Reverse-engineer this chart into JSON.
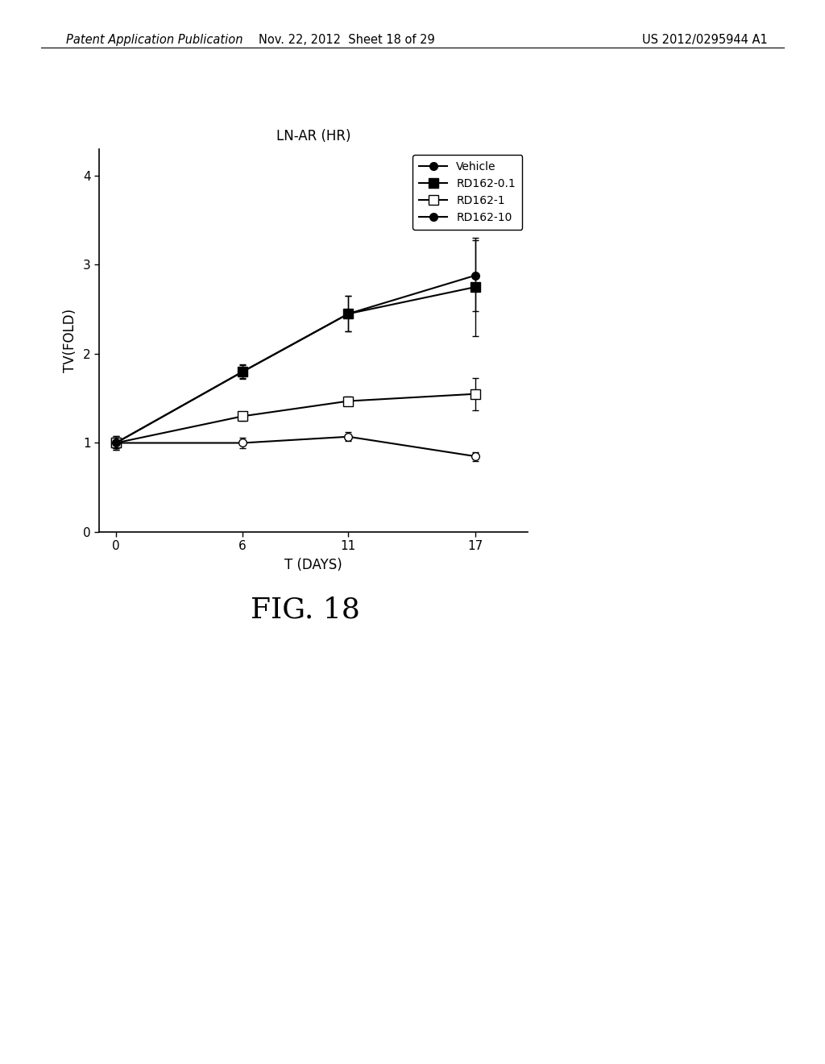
{
  "title": "LN-AR (HR)",
  "xlabel": "T (DAYS)",
  "ylabel": "TV(FOLD)",
  "x": [
    0,
    6,
    11,
    17
  ],
  "series": [
    {
      "label": "Vehicle",
      "y": [
        1.0,
        1.0,
        1.07,
        0.85
      ],
      "yerr": [
        0.06,
        0.06,
        0.05,
        0.05
      ],
      "marker": "o",
      "filled": false
    },
    {
      "label": "RD162-0.1",
      "y": [
        1.0,
        1.8,
        2.45,
        2.75
      ],
      "yerr": [
        0.08,
        0.07,
        0.2,
        0.55
      ],
      "marker": "s",
      "filled": true
    },
    {
      "label": "RD162-1",
      "y": [
        1.0,
        1.3,
        1.47,
        1.55
      ],
      "yerr": [
        0.05,
        0.05,
        0.05,
        0.18
      ],
      "marker": "s",
      "filled": false
    },
    {
      "label": "RD162-10",
      "y": [
        1.0,
        1.8,
        2.45,
        2.88
      ],
      "yerr": [
        0.08,
        0.08,
        0.2,
        0.4
      ],
      "marker": "o",
      "filled": true
    }
  ],
  "ylim": [
    0,
    4.3
  ],
  "yticks": [
    0,
    1,
    2,
    3,
    4
  ],
  "xticks": [
    0,
    6,
    11,
    17
  ],
  "xlim": [
    -0.8,
    19.5
  ],
  "fig_caption": "FIG. 18",
  "header_left": "Patent Application Publication",
  "header_mid": "Nov. 22, 2012  Sheet 18 of 29",
  "header_right": "US 2012/0295944 A1",
  "legend_labels": [
    "Vehicle",
    "RD162-0.1",
    "RD162-1",
    "RD162-10"
  ]
}
